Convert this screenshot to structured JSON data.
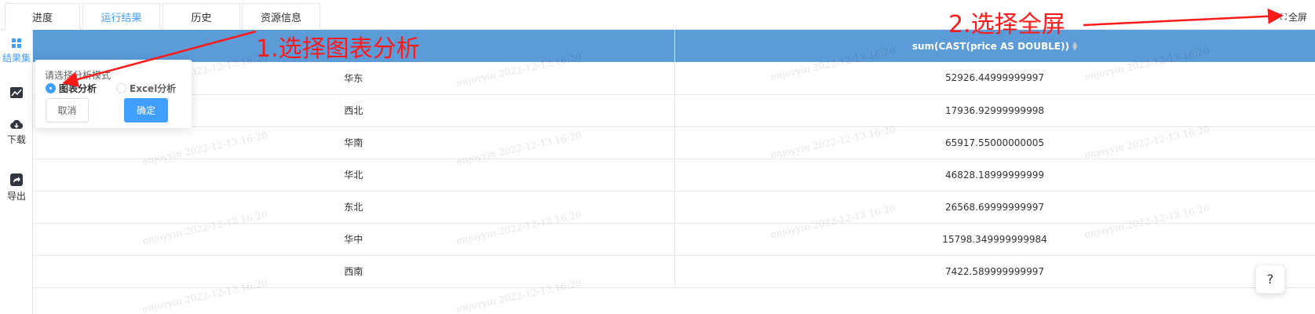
{
  "tabs": [
    {
      "label": "进度"
    },
    {
      "label": "运行结果"
    },
    {
      "label": "历史"
    },
    {
      "label": "资源信息"
    }
  ],
  "fullscreen": {
    "label": "全屏"
  },
  "sidebar": {
    "items": [
      {
        "label": "结果集",
        "icon": "grid-icon"
      },
      {
        "label": "",
        "icon": "chart-icon"
      },
      {
        "label": "下载",
        "icon": "cloud-download-icon"
      },
      {
        "label": "导出",
        "icon": "share-icon"
      }
    ]
  },
  "table": {
    "headers": [
      "",
      "sum(CAST(price AS DOUBLE))"
    ],
    "rows": [
      [
        "华东",
        "52926.44999999997"
      ],
      [
        "西北",
        "17936.92999999998"
      ],
      [
        "华南",
        "65917.55000000005"
      ],
      [
        "华北",
        "46828.18999999999"
      ],
      [
        "东北",
        "26568.69999999997"
      ],
      [
        "华中",
        "15798.349999999984"
      ],
      [
        "西南",
        "7422.589999999997"
      ]
    ]
  },
  "watermark": "enjoyyin 2022-12-13 16:20",
  "popover": {
    "title": "请选择分析模式",
    "options": [
      "图表分析",
      "Excel分析"
    ],
    "selected": "图表分析",
    "cancel_label": "取消",
    "ok_label": "确定"
  },
  "annotations": {
    "step1": "1.选择图表分析",
    "step2": "2.选择全屏"
  },
  "help": {
    "label": "?"
  },
  "colors": {
    "accent": "#409eff",
    "header_bg": "#5a9bd8",
    "annotation": "#ff1a1a"
  }
}
